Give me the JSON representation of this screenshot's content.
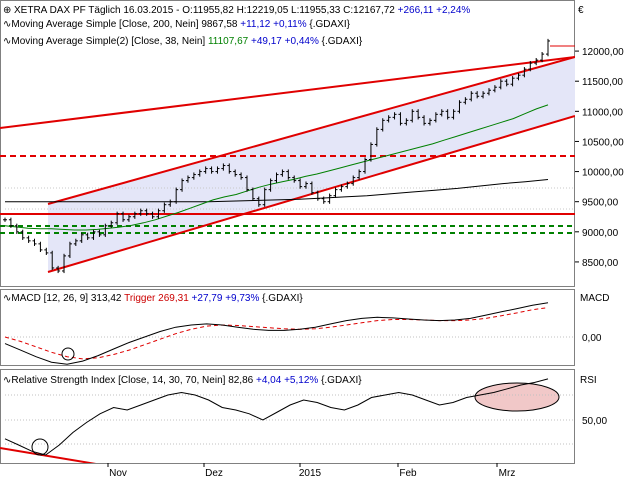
{
  "header": {
    "main_title": "XETRA DAX PF Täglich",
    "date": "16.03.2015",
    "ohlc_text": "O:11955,82 H:12219,05 L:11955,33 C:12167,72",
    "change_text": "+266,11 +2,24%",
    "currency_label": "€"
  },
  "indicators": {
    "ma200": {
      "label": "Moving Average Simple [Close, 200, Nein]",
      "value": "9867,58",
      "change": "+11,12 +0,11%",
      "ref": "{.GDAXI}"
    },
    "ma38": {
      "label": "Moving Average Simple(2) [Close, 38, Nein]",
      "value": "11107,67",
      "change": "+49,17 +0,44%",
      "ref": "{.GDAXI}"
    }
  },
  "macd_panel": {
    "label": "MACD [12, 26, 9]",
    "value": "313,42",
    "trigger_label": "Trigger",
    "trigger_value": "269,31",
    "change": "+27,79 +9,73%",
    "ref": "{.GDAXI}",
    "axis_title": "MACD",
    "tick": "0,00"
  },
  "rsi_panel": {
    "label": "Relative Strength Index [Close, 14, 30, 70, Nein]",
    "value": "82,86",
    "change": "+4,04 +5,12%",
    "ref": "{.GDAXI}",
    "axis_title": "RSI",
    "tick": "50,00"
  },
  "colors": {
    "price": "#000000",
    "ma38": "#008000",
    "ma200": "#000000",
    "channel": "#e00000",
    "channel_fill": "#e4e6f8",
    "macd_line": "#000000",
    "trigger_line": "#e00000",
    "support": "#008000",
    "ellipse": "#f1c8c8",
    "value_blue": "#0000cc",
    "trigger_red": "#cc0000"
  },
  "chart_data": {
    "type": "line",
    "title": "XETRA DAX PF Täglich",
    "x_labels": [
      "Nov",
      "Dez",
      "2015",
      "Feb",
      "Mrz"
    ],
    "price_ticks": [
      "12000,00",
      "11500,00",
      "11000,00",
      "10500,00",
      "10000,00",
      "9500,00",
      "9000,00",
      "8500,00"
    ],
    "ylim": [
      8200,
      12350
    ],
    "series": [
      {
        "name": "XETRA DAX PF Täglich",
        "values": [
          9200,
          9100,
          9000,
          8900,
          8850,
          8800,
          8700,
          8650,
          8400,
          8350,
          8600,
          8800,
          8850,
          8950,
          8900,
          9000,
          8950,
          9100,
          9150,
          9300,
          9200,
          9250,
          9300,
          9350,
          9300,
          9250,
          9350,
          9450,
          9500,
          9700,
          9850,
          9900,
          9950,
          10000,
          10050,
          10000,
          10050,
          10100,
          10000,
          9950,
          9900,
          9700,
          9550,
          9450,
          9700,
          9850,
          9950,
          10000,
          9900,
          9850,
          9750,
          9800,
          9650,
          9550,
          9500,
          9600,
          9700,
          9750,
          9800,
          9900,
          10000,
          10200,
          10450,
          10700,
          10850,
          10900,
          10950,
          10800,
          10850,
          11000,
          10900,
          10800,
          10850,
          10950,
          11000,
          10900,
          11000,
          11150,
          11200,
          11300,
          11250,
          11300,
          11350,
          11400,
          11500,
          11450,
          11550,
          11600,
          11700,
          11800,
          11850,
          11950,
          12168
        ]
      },
      {
        "name": "Moving Average Simple(2) [Close, 38, Nein]",
        "values": [
          9100,
          9080,
          9060,
          9050,
          9050,
          9040,
          9030,
          9030,
          9040,
          9060,
          9080,
          9110,
          9150,
          9200,
          9260,
          9320,
          9390,
          9460,
          9530,
          9580,
          9620,
          9680,
          9740,
          9790,
          9830,
          9870,
          9920,
          9960,
          10010,
          10060,
          10110,
          10160,
          10210,
          10260,
          10310,
          10360,
          10410,
          10460,
          10520,
          10580,
          10640,
          10700,
          10760,
          10820,
          10880,
          10960,
          11040,
          11107
        ]
      },
      {
        "name": "Moving Average Simple [Close, 200, Nein]",
        "values": [
          9500,
          9500,
          9500,
          9500,
          9500,
          9500,
          9500,
          9500,
          9500,
          9500,
          9510,
          9520,
          9530,
          9540,
          9560,
          9580,
          9600,
          9630,
          9660,
          9690,
          9720,
          9760,
          9800,
          9830,
          9868
        ]
      },
      {
        "name": "MACD [12, 26, 9]",
        "values": [
          -60,
          -120,
          -180,
          -230,
          -250,
          -220,
          -170,
          -110,
          -50,
          0,
          50,
          90,
          110,
          120,
          110,
          90,
          70,
          60,
          60,
          70,
          90,
          120,
          150,
          170,
          180,
          175,
          165,
          155,
          150,
          155,
          170,
          200,
          230,
          260,
          290,
          313
        ]
      },
      {
        "name": "Trigger",
        "values": [
          0,
          -40,
          -90,
          -140,
          -180,
          -200,
          -190,
          -160,
          -120,
          -70,
          -20,
          30,
          70,
          100,
          110,
          105,
          95,
          85,
          75,
          70,
          75,
          90,
          110,
          130,
          150,
          160,
          160,
          155,
          150,
          150,
          155,
          170,
          195,
          220,
          250,
          269
        ]
      },
      {
        "name": "Relative Strength Index [Close, 14, 30, 70, Nein]",
        "values": [
          35,
          30,
          25,
          22,
          30,
          40,
          48,
          55,
          60,
          58,
          62,
          66,
          70,
          72,
          70,
          66,
          60,
          58,
          55,
          50,
          56,
          62,
          66,
          64,
          60,
          58,
          62,
          68,
          70,
          72,
          70,
          66,
          62,
          64,
          68,
          70,
          72,
          75,
          78,
          80,
          82.86
        ]
      }
    ]
  }
}
